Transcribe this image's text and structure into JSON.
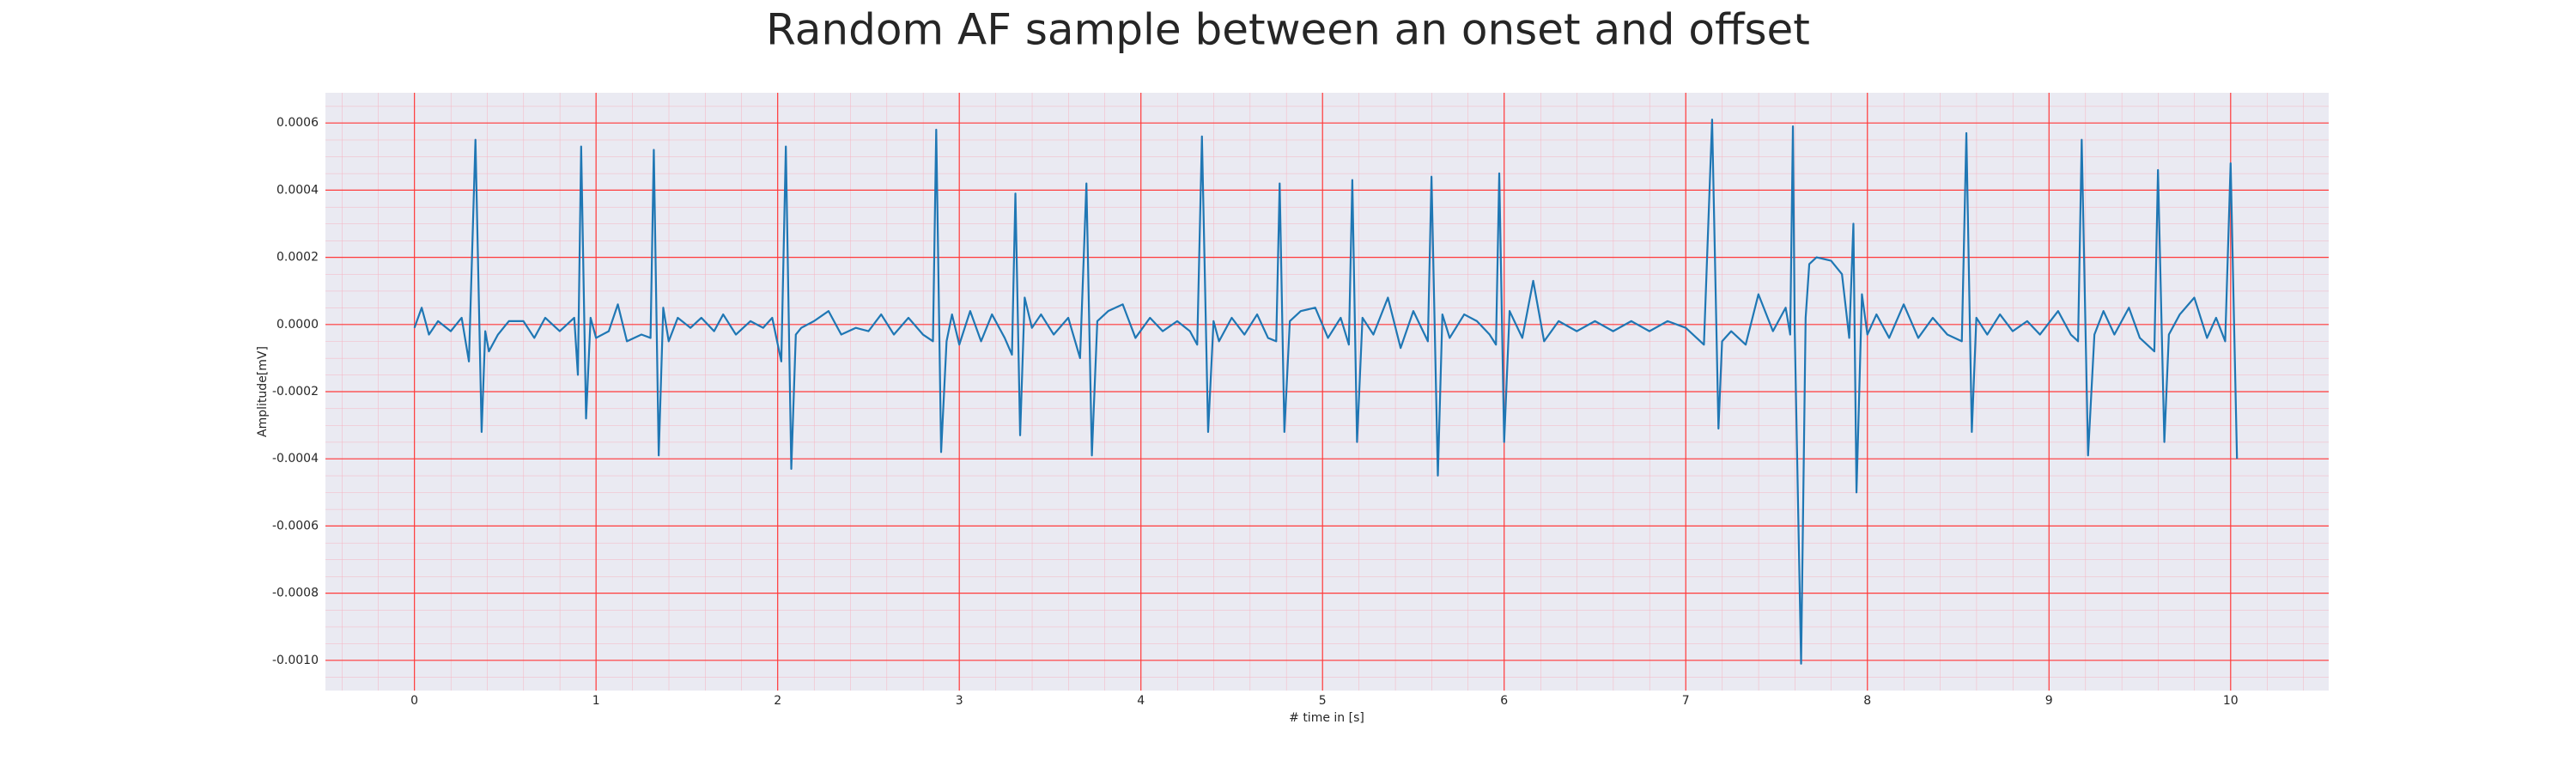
{
  "chart_data": {
    "type": "line",
    "title": "Random AF sample between an onset and offset",
    "xlabel": "# time in [s]",
    "ylabel": "Amplitude[mV]",
    "color": "#1f77b4",
    "grid": true,
    "minor_grid": true,
    "xlim": [
      -0.49,
      10.54
    ],
    "ylim": [
      -0.00109,
      0.00069
    ],
    "xticks": [
      0,
      1,
      2,
      3,
      4,
      5,
      6,
      7,
      8,
      9,
      10
    ],
    "yticks": [
      {
        "value": -0.001,
        "label": "-0.0010"
      },
      -0.0008,
      -0.0006,
      -0.0004,
      -0.0002,
      {
        "value": 0,
        "label": "0.0000"
      },
      0.0002,
      0.0004,
      0.0006
    ],
    "x": [
      0,
      0.04,
      0.08,
      0.13,
      0.2,
      0.26,
      0.3,
      0.336,
      0.37,
      0.39,
      0.41,
      0.46,
      0.52,
      0.6,
      0.66,
      0.72,
      0.8,
      0.88,
      0.9,
      0.918,
      0.945,
      0.97,
      1.0,
      1.07,
      1.12,
      1.17,
      1.25,
      1.3,
      1.318,
      1.345,
      1.37,
      1.4,
      1.45,
      1.52,
      1.58,
      1.65,
      1.7,
      1.77,
      1.85,
      1.92,
      1.97,
      2.02,
      2.045,
      2.075,
      2.1,
      2.13,
      2.2,
      2.28,
      2.35,
      2.43,
      2.5,
      2.57,
      2.64,
      2.72,
      2.8,
      2.855,
      2.873,
      2.9,
      2.93,
      2.96,
      3.0,
      3.06,
      3.12,
      3.18,
      3.25,
      3.29,
      3.309,
      3.335,
      3.36,
      3.4,
      3.45,
      3.52,
      3.6,
      3.665,
      3.7,
      3.73,
      3.76,
      3.82,
      3.9,
      3.97,
      4.05,
      4.12,
      4.2,
      4.27,
      4.31,
      4.336,
      4.37,
      4.4,
      4.43,
      4.5,
      4.57,
      4.64,
      4.7,
      4.745,
      4.764,
      4.79,
      4.82,
      4.88,
      4.96,
      5.03,
      5.1,
      5.145,
      5.164,
      5.19,
      5.22,
      5.28,
      5.36,
      5.43,
      5.5,
      5.58,
      5.6,
      5.635,
      5.66,
      5.7,
      5.78,
      5.85,
      5.92,
      5.955,
      5.973,
      6.0,
      6.03,
      6.1,
      6.16,
      6.22,
      6.3,
      6.4,
      6.5,
      6.6,
      6.7,
      6.8,
      6.9,
      7.0,
      7.1,
      7.145,
      7.18,
      7.2,
      7.25,
      7.33,
      7.4,
      7.48,
      7.55,
      7.575,
      7.59,
      7.6,
      7.635,
      7.66,
      7.68,
      7.72,
      7.8,
      7.86,
      7.9,
      7.923,
      7.94,
      7.97,
      8.0,
      8.05,
      8.12,
      8.2,
      8.28,
      8.36,
      8.44,
      8.52,
      8.545,
      8.575,
      8.6,
      8.66,
      8.73,
      8.8,
      8.88,
      8.95,
      9.05,
      9.12,
      9.16,
      9.18,
      9.215,
      9.25,
      9.3,
      9.36,
      9.44,
      9.5,
      9.58,
      9.6,
      9.635,
      9.66,
      9.72,
      9.8,
      9.87,
      9.92,
      9.97,
      10.0,
      10.035
    ],
    "values": [
      -1e-05,
      5e-05,
      -3e-05,
      1e-05,
      -2e-05,
      2e-05,
      -0.00011,
      0.00055,
      -0.00032,
      -2e-05,
      -8e-05,
      -3e-05,
      1e-05,
      1e-05,
      -4e-05,
      2e-05,
      -2e-05,
      2e-05,
      -0.00015,
      0.00053,
      -0.00028,
      2e-05,
      -4e-05,
      -2e-05,
      6e-05,
      -5e-05,
      -3e-05,
      -4e-05,
      0.00052,
      -0.00039,
      5e-05,
      -5e-05,
      2e-05,
      -1e-05,
      2e-05,
      -2e-05,
      3e-05,
      -3e-05,
      1e-05,
      -1e-05,
      2e-05,
      -0.00011,
      0.00053,
      -0.00043,
      -3e-05,
      -1e-05,
      1e-05,
      4e-05,
      -3e-05,
      -1e-05,
      -2e-05,
      3e-05,
      -3e-05,
      2e-05,
      -3e-05,
      -5e-05,
      0.00058,
      -0.00038,
      -5e-05,
      3e-05,
      -6e-05,
      4e-05,
      -5e-05,
      3e-05,
      -4e-05,
      -9e-05,
      0.00039,
      -0.00033,
      8e-05,
      -1e-05,
      3e-05,
      -3e-05,
      2e-05,
      -0.0001,
      0.00042,
      -0.00039,
      1e-05,
      4e-05,
      6e-05,
      -4e-05,
      2e-05,
      -2e-05,
      1e-05,
      -2e-05,
      -6e-05,
      0.00056,
      -0.00032,
      1e-05,
      -5e-05,
      2e-05,
      -3e-05,
      3e-05,
      -4e-05,
      -5e-05,
      0.00042,
      -0.00032,
      1e-05,
      4e-05,
      5e-05,
      -4e-05,
      2e-05,
      -6e-05,
      0.00043,
      -0.00035,
      2e-05,
      -3e-05,
      8e-05,
      -7e-05,
      4e-05,
      -5e-05,
      0.00044,
      -0.00045,
      3e-05,
      -4e-05,
      3e-05,
      1e-05,
      -3e-05,
      -6e-05,
      0.00045,
      -0.00035,
      4e-05,
      -4e-05,
      0.00013,
      -5e-05,
      1e-05,
      -2e-05,
      1e-05,
      -2e-05,
      1e-05,
      -2e-05,
      1e-05,
      -1e-05,
      -6e-05,
      0.00061,
      -0.00031,
      -5e-05,
      -2e-05,
      -6e-05,
      9e-05,
      -2e-05,
      5e-05,
      -3e-05,
      0.00059,
      -2e-05,
      -0.00101,
      2e-05,
      0.00018,
      0.0002,
      0.00019,
      0.00015,
      -4e-05,
      0.0003,
      -0.0005,
      9e-05,
      -3e-05,
      3e-05,
      -4e-05,
      6e-05,
      -4e-05,
      2e-05,
      -3e-05,
      -5e-05,
      0.00057,
      -0.00032,
      2e-05,
      -3e-05,
      3e-05,
      -2e-05,
      1e-05,
      -3e-05,
      4e-05,
      -3e-05,
      -5e-05,
      0.00055,
      -0.00039,
      -3e-05,
      4e-05,
      -3e-05,
      5e-05,
      -4e-05,
      -8e-05,
      0.00046,
      -0.00035,
      -3e-05,
      3e-05,
      8e-05,
      -4e-05,
      2e-05,
      -5e-05,
      0.00048,
      -0.0004
    ]
  }
}
